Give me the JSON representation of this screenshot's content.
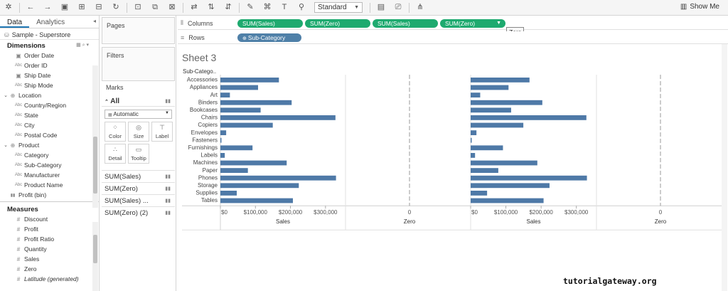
{
  "toolbar": {
    "view_mode": "Standard",
    "show_me_label": "Show Me"
  },
  "data_pane": {
    "tabs": [
      "Data",
      "Analytics"
    ],
    "datasource": "Sample - Superstore",
    "dimensions_title": "Dimensions",
    "dimensions": [
      {
        "label": "Order Date",
        "type": "date",
        "indent": 1
      },
      {
        "label": "Order ID",
        "type": "abc",
        "indent": 1
      },
      {
        "label": "Ship Date",
        "type": "date",
        "indent": 1
      },
      {
        "label": "Ship Mode",
        "type": "abc",
        "indent": 1
      },
      {
        "label": "Location",
        "type": "hier",
        "indent": 0
      },
      {
        "label": "Country/Region",
        "type": "abc",
        "indent": 1
      },
      {
        "label": "State",
        "type": "abc",
        "indent": 1
      },
      {
        "label": "City",
        "type": "abc",
        "indent": 1
      },
      {
        "label": "Postal Code",
        "type": "abc",
        "indent": 1
      },
      {
        "label": "Product",
        "type": "hier",
        "indent": 0
      },
      {
        "label": "Category",
        "type": "abc",
        "indent": 1
      },
      {
        "label": "Sub-Category",
        "type": "abc",
        "indent": 1
      },
      {
        "label": "Manufacturer",
        "type": "abc",
        "indent": 1
      },
      {
        "label": "Product Name",
        "type": "abc",
        "indent": 1
      },
      {
        "label": "Profit (bin)",
        "type": "bin",
        "indent": 0
      }
    ],
    "measures_title": "Measures",
    "measures": [
      {
        "label": "Discount"
      },
      {
        "label": "Profit"
      },
      {
        "label": "Profit Ratio"
      },
      {
        "label": "Quantity"
      },
      {
        "label": "Sales"
      },
      {
        "label": "Zero"
      },
      {
        "label": "Latitude (generated)"
      }
    ]
  },
  "cards": {
    "pages": "Pages",
    "filters": "Filters",
    "marks": "Marks",
    "marks_all": "All",
    "mark_type": "Automatic",
    "mark_buttons": [
      "Color",
      "Size",
      "Label",
      "Detail",
      "Tooltip"
    ],
    "measure_tabs": [
      "SUM(Sales)",
      "SUM(Zero)",
      "SUM(Sales) ...",
      "SUM(Zero) (2)"
    ]
  },
  "shelves": {
    "columns_label": "Columns",
    "rows_label": "Rows",
    "columns_pills": [
      "SUM(Sales)",
      "SUM(Zero)",
      "SUM(Sales)",
      "SUM(Zero)"
    ],
    "rows_pills": [
      "Sub-Category"
    ],
    "tooltip": "Zero"
  },
  "view": {
    "sheet_title": "Sheet 3",
    "row_header": "Sub-Catego..",
    "watermark": "tutorialgateway.org"
  },
  "colors": {
    "bar": "#4e79a7",
    "pill_measure": "#1eaa6f",
    "pill_dimension": "#4f80a8"
  },
  "chart_data": {
    "type": "bar",
    "categories": [
      "Accessories",
      "Appliances",
      "Art",
      "Binders",
      "Bookcases",
      "Chairs",
      "Copiers",
      "Envelopes",
      "Fasteners",
      "Furnishings",
      "Labels",
      "Machines",
      "Paper",
      "Phones",
      "Storage",
      "Supplies",
      "Tables"
    ],
    "series": [
      {
        "name": "Sales",
        "values": [
          167026,
          107532,
          27119,
          203413,
          114880,
          328449,
          149528,
          16476,
          3024,
          91705,
          12486,
          189239,
          78479,
          330007,
          223844,
          46674,
          206966
        ]
      }
    ],
    "x_axes": [
      "Sales",
      "Zero",
      "Sales",
      "Zero"
    ],
    "sales_ticks": [
      "$0",
      "$100,000",
      "$200,000",
      "$300,000"
    ],
    "zero_tick": "0",
    "xlim": [
      0,
      345000
    ],
    "grid": false
  }
}
